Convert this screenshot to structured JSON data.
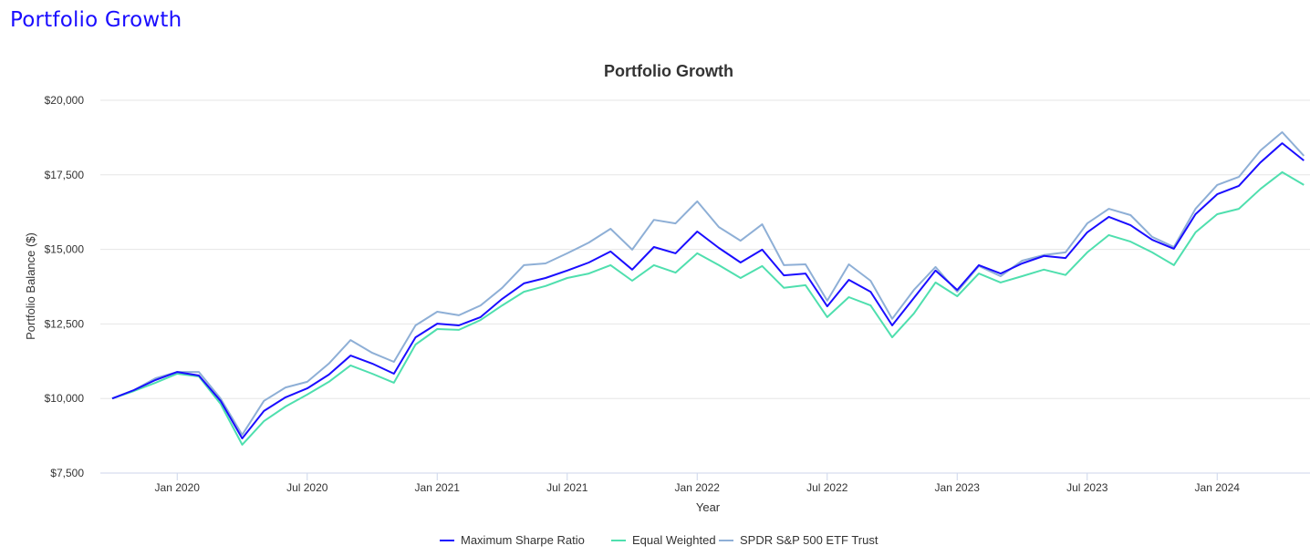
{
  "page": {
    "title": "Portfolio Growth"
  },
  "chart_data": {
    "type": "line",
    "title": "Portfolio Growth",
    "xlabel": "Year",
    "ylabel": "Portfolio Balance ($)",
    "ylim": [
      7500,
      20000
    ],
    "yticks": [
      7500,
      10000,
      12500,
      15000,
      17500,
      20000
    ],
    "ytick_labels": [
      "$7,500",
      "$10,000",
      "$12,500",
      "$15,000",
      "$17,500",
      "$20,000"
    ],
    "x_start": "2019-10",
    "x_frequency": "monthly",
    "xtick_labels": [
      {
        "label": "Jan 2020",
        "index": 3
      },
      {
        "label": "Jul 2020",
        "index": 9
      },
      {
        "label": "Jan 2021",
        "index": 15
      },
      {
        "label": "Jul 2021",
        "index": 21
      },
      {
        "label": "Jan 2022",
        "index": 27
      },
      {
        "label": "Jul 2022",
        "index": 33
      },
      {
        "label": "Jan 2023",
        "index": 39
      },
      {
        "label": "Jul 2023",
        "index": 45
      },
      {
        "label": "Jan 2024",
        "index": 51
      }
    ],
    "grid": true,
    "legend_position": "bottom",
    "series": [
      {
        "name": "Maximum Sharpe Ratio",
        "color": "#1a0dff",
        "values": [
          10000,
          10280,
          10620,
          10890,
          10770,
          9920,
          8660,
          9580,
          10040,
          10340,
          10800,
          11440,
          11170,
          10830,
          12050,
          12510,
          12450,
          12730,
          13340,
          13860,
          14040,
          14290,
          14560,
          14930,
          14320,
          15080,
          14870,
          15600,
          15050,
          14560,
          14990,
          14130,
          14190,
          13090,
          13980,
          13580,
          12450,
          13370,
          14290,
          13640,
          14470,
          14190,
          14530,
          14780,
          14710,
          15570,
          16090,
          15810,
          15320,
          15020,
          16180,
          16850,
          17130,
          17920,
          18560,
          17980
        ]
      },
      {
        "name": "Equal Weighted",
        "color": "#4fdfae",
        "values": [
          10000,
          10250,
          10530,
          10830,
          10740,
          9820,
          8450,
          9240,
          9730,
          10130,
          10560,
          11110,
          10830,
          10530,
          11810,
          12330,
          12300,
          12630,
          13120,
          13580,
          13770,
          14040,
          14190,
          14470,
          13950,
          14470,
          14220,
          14870,
          14470,
          14040,
          14440,
          13710,
          13800,
          12730,
          13400,
          13120,
          12050,
          12850,
          13890,
          13430,
          14190,
          13890,
          14100,
          14320,
          14140,
          14900,
          15480,
          15260,
          14900,
          14470,
          15570,
          16180,
          16360,
          17030,
          17590,
          17160
        ]
      },
      {
        "name": "SPDR S&P 500 ETF Trust",
        "color": "#8eafd6",
        "values": [
          10000,
          10280,
          10680,
          10890,
          10890,
          10000,
          8780,
          9920,
          10370,
          10560,
          11170,
          11960,
          11530,
          11230,
          12450,
          12910,
          12790,
          13120,
          13710,
          14470,
          14530,
          14870,
          15230,
          15690,
          14990,
          15990,
          15870,
          16610,
          15750,
          15290,
          15840,
          14470,
          14500,
          13280,
          14500,
          13950,
          12670,
          13640,
          14410,
          13580,
          14440,
          14100,
          14620,
          14810,
          14900,
          15870,
          16360,
          16150,
          15420,
          15080,
          16360,
          17160,
          17430,
          18320,
          18930,
          18140
        ]
      }
    ]
  }
}
